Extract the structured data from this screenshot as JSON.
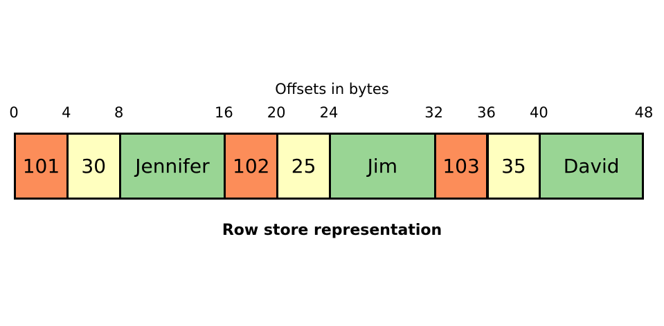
{
  "diagram": {
    "axis_title": "Offsets in bytes",
    "caption": "Row store representation",
    "offsets": [
      "0",
      "4",
      "8",
      "16",
      "20",
      "24",
      "32",
      "36",
      "40",
      "48"
    ],
    "cells": [
      {
        "text": "101",
        "kind": "id"
      },
      {
        "text": "30",
        "kind": "age"
      },
      {
        "text": "Jennifer",
        "kind": "name"
      },
      {
        "text": "102",
        "kind": "id"
      },
      {
        "text": "25",
        "kind": "age"
      },
      {
        "text": "Jim",
        "kind": "name"
      },
      {
        "text": "103",
        "kind": "id"
      },
      {
        "text": "35",
        "kind": "age"
      },
      {
        "text": "David",
        "kind": "name"
      }
    ],
    "colors": {
      "id": "#fc8d59",
      "age": "#ffffbf",
      "name": "#99d594",
      "border": "#000000"
    }
  }
}
